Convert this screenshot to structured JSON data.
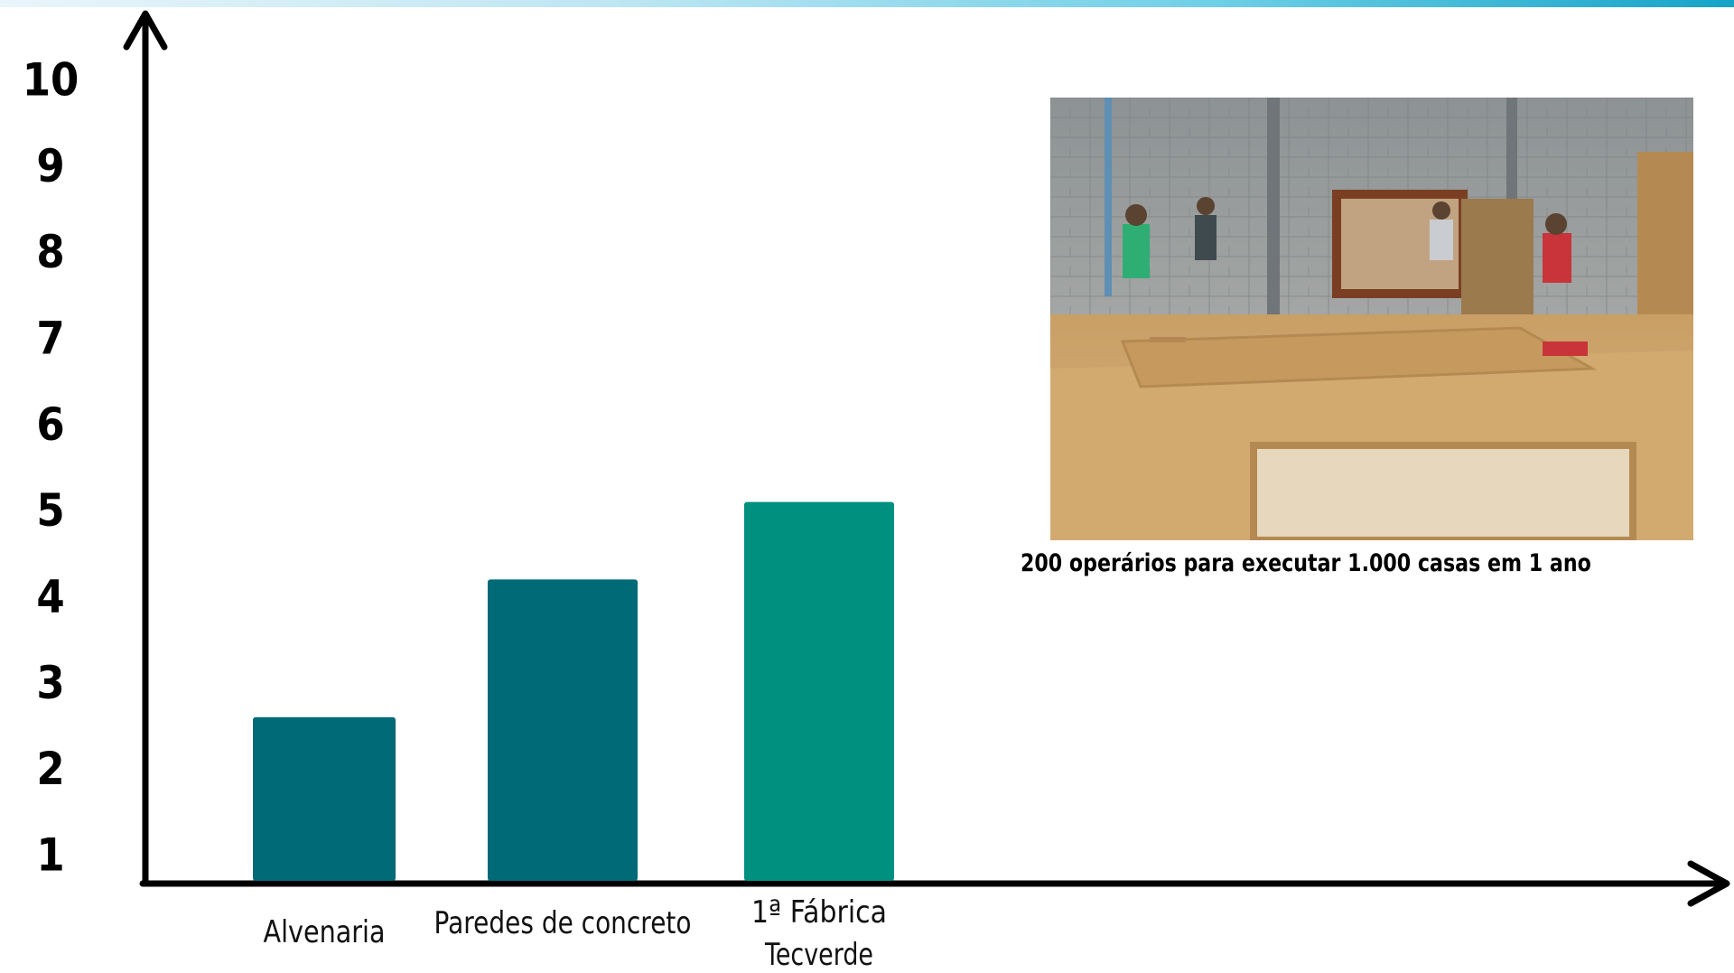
{
  "chart_data": {
    "type": "bar",
    "categories": [
      "Alvenaria",
      "Paredes de concreto",
      "1ª Fábrica Tecverde"
    ],
    "category_lines": [
      [
        "Alvenaria"
      ],
      [
        "Paredes de concreto"
      ],
      [
        "1ª Fábrica",
        "Tecverde"
      ]
    ],
    "values": [
      2.6,
      4.2,
      5.1
    ],
    "bar_colors": [
      "#006a76",
      "#006a76",
      "#009080"
    ],
    "yticks": [
      "1",
      "2",
      "3",
      "4",
      "5",
      "6",
      "7",
      "8",
      "9",
      "10"
    ],
    "ylim": [
      0.7,
      10.3
    ],
    "grid": false,
    "legend": "none",
    "title": "",
    "xlabel": "",
    "ylabel": ""
  },
  "photo": {
    "description_icon": "factory-workers-photo"
  },
  "caption": "200 operários para executar 1.000 casas em 1 ano",
  "colors": {
    "axis": "#000000",
    "band_start": "#e9f5fb",
    "band_end": "#16a3c8"
  }
}
